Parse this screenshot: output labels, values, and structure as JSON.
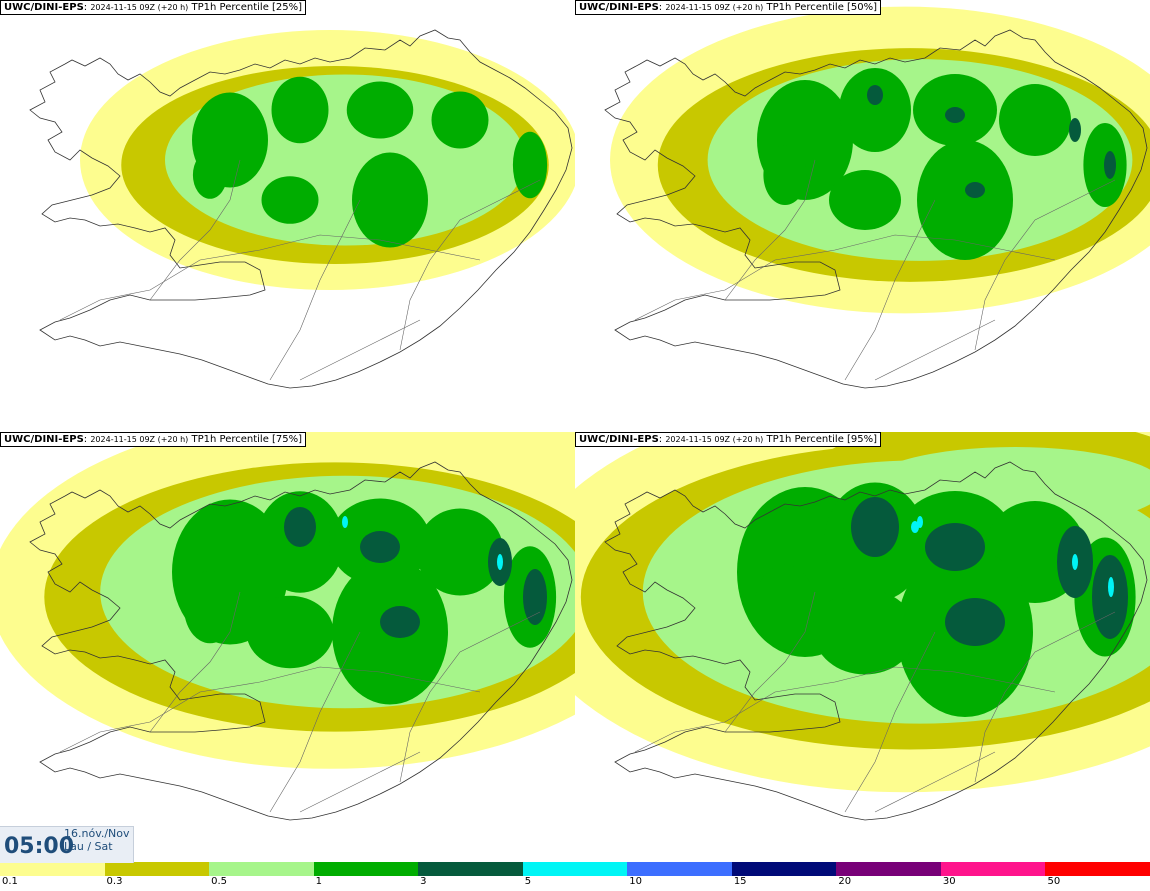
{
  "panels": [
    {
      "model": "UWC/DINI-EPS",
      "run": "2024-11-15 09Z (+20 h)",
      "field": "TP1h Percentile [25%]",
      "level": 1
    },
    {
      "model": "UWC/DINI-EPS",
      "run": "2024-11-15 09Z (+20 h)",
      "field": "TP1h Percentile [50%]",
      "level": 2
    },
    {
      "model": "UWC/DINI-EPS",
      "run": "2024-11-15 09Z (+20 h)",
      "field": "TP1h Percentile [75%]",
      "level": 3
    },
    {
      "model": "UWC/DINI-EPS",
      "run": "2024-11-15 09Z (+20 h)",
      "field": "TP1h Percentile [95%]",
      "level": 4
    }
  ],
  "time": {
    "clock": "05:00",
    "date": "16.nóv./Nov",
    "weekday": "Lau / Sat"
  },
  "colorbar": {
    "colors": [
      "#fdfd8f",
      "#c8c800",
      "#a6f58a",
      "#00ad00",
      "#055a3c",
      "#00f5f5",
      "#3c6eff",
      "#000a78",
      "#780078",
      "#ff148c",
      "#ff0000"
    ],
    "labels": [
      "0.1",
      "0.3",
      "0.5",
      "1",
      "3",
      "5",
      "10",
      "15",
      "20",
      "30",
      "50"
    ]
  },
  "colors": {
    "light_yellow": "#fdfd8f",
    "olive": "#c8c800",
    "light_green": "#a6f58a",
    "green": "#00ad00",
    "dark_green": "#055a3c",
    "cyan": "#00f5f5"
  }
}
